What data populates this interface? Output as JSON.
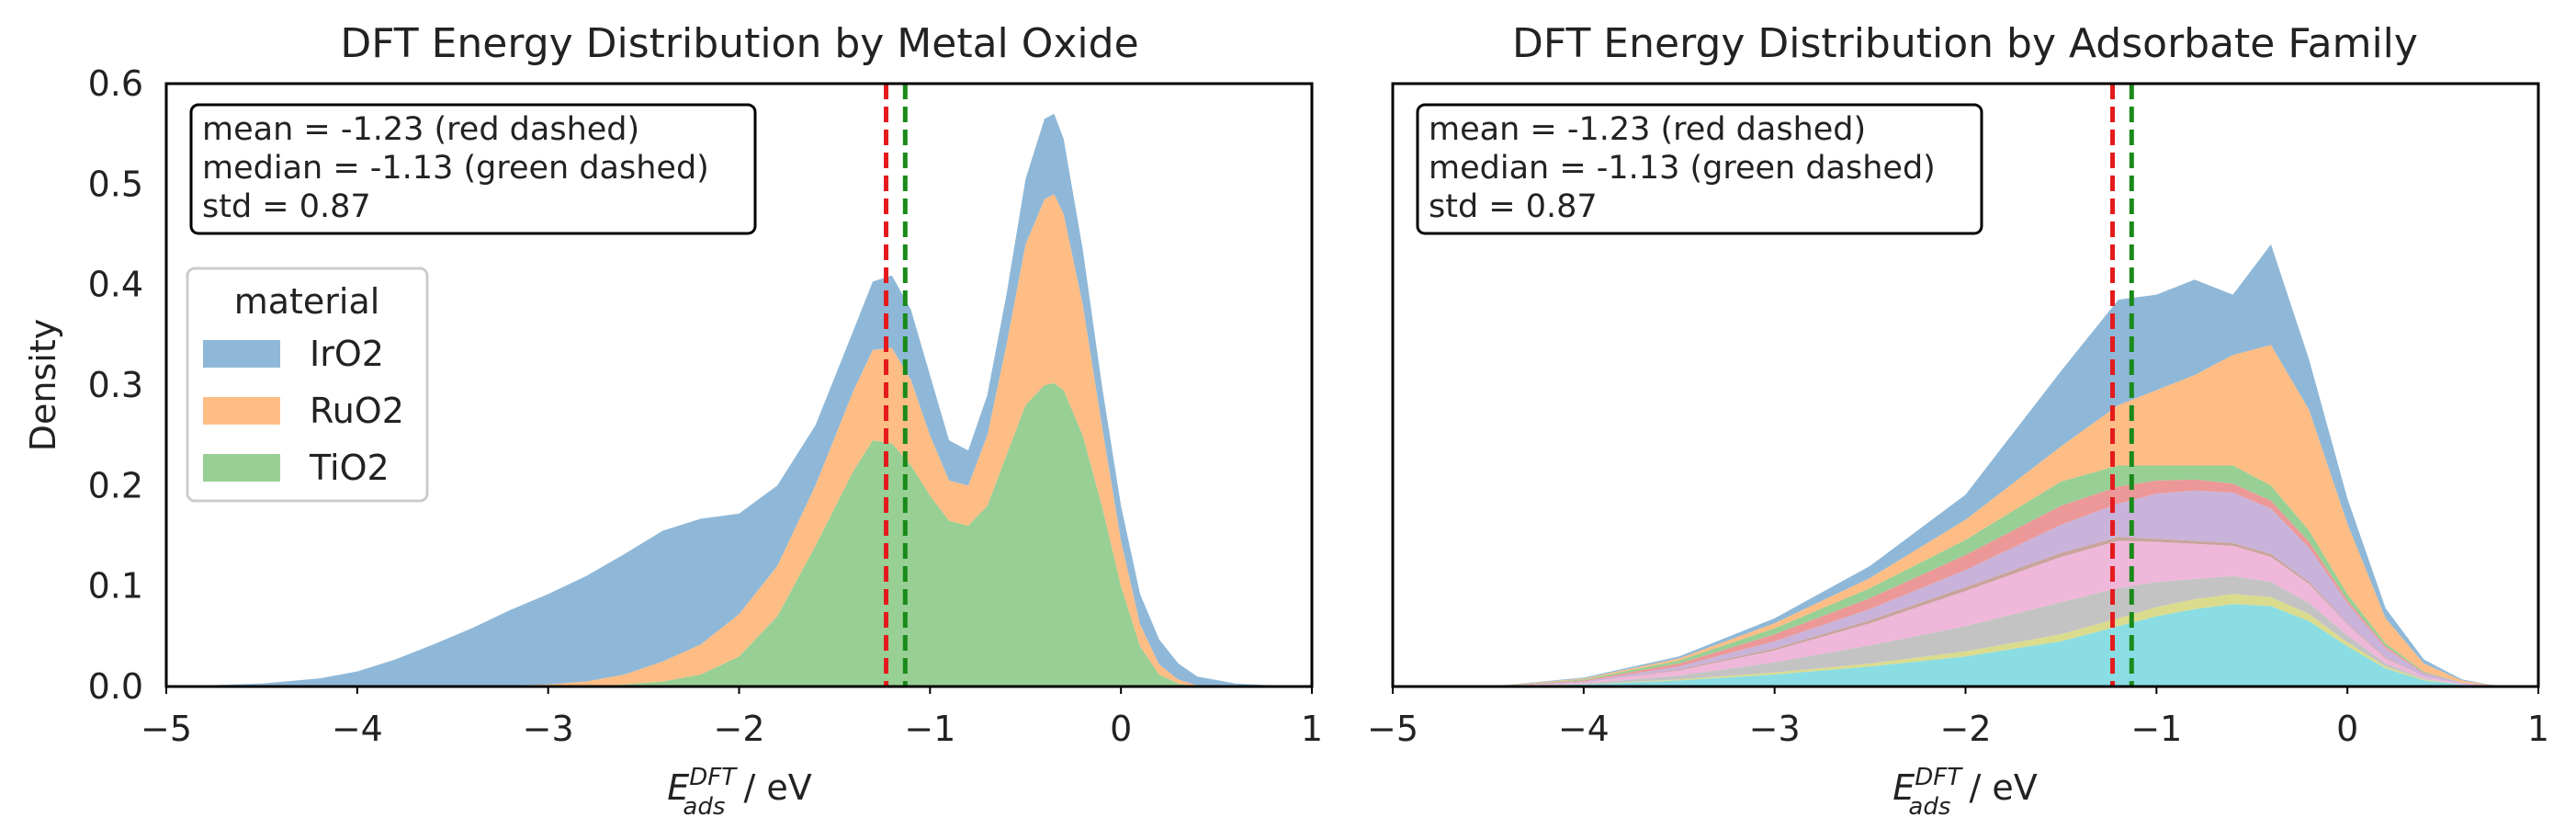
{
  "chart_data": [
    {
      "type": "area",
      "stacked": true,
      "title": "DFT Energy Distribution by Metal Oxide",
      "xlabel": "E",
      "xlabel_sup": "DFT",
      "xlabel_sub": "ads",
      "xlabel_unit": " / eV",
      "ylabel": "Density",
      "xlim": [
        -5,
        1
      ],
      "ylim": [
        0,
        0.6
      ],
      "xticks": [
        -5,
        -4,
        -3,
        -2,
        -1,
        0,
        1
      ],
      "xtick_labels": [
        "−5",
        "−4",
        "−3",
        "−2",
        "−1",
        "0",
        "1"
      ],
      "yticks": [
        0.0,
        0.1,
        0.2,
        0.3,
        0.4,
        0.5,
        0.6
      ],
      "ytick_labels": [
        "0.0",
        "0.1",
        "0.2",
        "0.3",
        "0.4",
        "0.5",
        "0.6"
      ],
      "grid": false,
      "legend_title": "material",
      "legend_position": "upper-left",
      "annotation_lines": [
        "mean = -1.23 (red dashed)",
        "median = -1.13 (green dashed)",
        "std = 0.87"
      ],
      "vlines": [
        {
          "x": -1.23,
          "color": "#e41a1c",
          "style": "dashed"
        },
        {
          "x": -1.13,
          "color": "#1a8a1a",
          "style": "dashed"
        }
      ],
      "x": [
        -4.8,
        -4.5,
        -4.2,
        -4.0,
        -3.8,
        -3.6,
        -3.4,
        -3.2,
        -3.0,
        -2.8,
        -2.6,
        -2.4,
        -2.2,
        -2.0,
        -1.8,
        -1.6,
        -1.4,
        -1.3,
        -1.2,
        -1.1,
        -1.0,
        -0.9,
        -0.8,
        -0.7,
        -0.6,
        -0.5,
        -0.4,
        -0.35,
        -0.3,
        -0.2,
        -0.1,
        0.0,
        0.1,
        0.2,
        0.3,
        0.4,
        0.6,
        0.8,
        1.0
      ],
      "series": [
        {
          "name": "TiO2",
          "color": "#98cf95",
          "values": [
            0,
            0,
            0,
            0,
            0,
            0,
            0,
            0,
            0,
            0,
            0.002,
            0.005,
            0.012,
            0.03,
            0.07,
            0.14,
            0.215,
            0.245,
            0.242,
            0.22,
            0.19,
            0.165,
            0.16,
            0.18,
            0.23,
            0.28,
            0.3,
            0.302,
            0.295,
            0.25,
            0.18,
            0.1,
            0.04,
            0.012,
            0.003,
            0,
            0,
            0,
            0
          ]
        },
        {
          "name": "RuO2",
          "color": "#fdbd85",
          "values": [
            0,
            0,
            0,
            0,
            0,
            0,
            0,
            0.001,
            0.002,
            0.005,
            0.01,
            0.02,
            0.03,
            0.042,
            0.05,
            0.06,
            0.08,
            0.09,
            0.095,
            0.085,
            0.06,
            0.04,
            0.04,
            0.07,
            0.11,
            0.16,
            0.185,
            0.188,
            0.175,
            0.13,
            0.08,
            0.045,
            0.022,
            0.01,
            0.004,
            0.001,
            0,
            0,
            0
          ]
        },
        {
          "name": "IrO2",
          "color": "#8fb8d8",
          "values": [
            0.001,
            0.003,
            0.008,
            0.015,
            0.027,
            0.042,
            0.058,
            0.075,
            0.09,
            0.105,
            0.12,
            0.13,
            0.125,
            0.1,
            0.08,
            0.06,
            0.06,
            0.068,
            0.072,
            0.07,
            0.06,
            0.04,
            0.035,
            0.04,
            0.05,
            0.065,
            0.08,
            0.08,
            0.075,
            0.055,
            0.04,
            0.035,
            0.03,
            0.025,
            0.016,
            0.009,
            0.003,
            0.001,
            0
          ]
        }
      ]
    },
    {
      "type": "area",
      "stacked": true,
      "title": "DFT Energy Distribution by Adsorbate Family",
      "xlabel": "E",
      "xlabel_sup": "DFT",
      "xlabel_sub": "ads",
      "xlabel_unit": " / eV",
      "ylabel": "",
      "xlim": [
        -5,
        1
      ],
      "ylim": [
        0,
        0.6
      ],
      "xticks": [
        -5,
        -4,
        -3,
        -2,
        -1,
        0,
        1
      ],
      "xtick_labels": [
        "−5",
        "−4",
        "−3",
        "−2",
        "−1",
        "0",
        "1"
      ],
      "yticks": [],
      "ytick_labels": [],
      "grid": false,
      "annotation_lines": [
        "mean = -1.23 (red dashed)",
        "median = -1.13 (green dashed)",
        "std = 0.87"
      ],
      "vlines": [
        {
          "x": -1.23,
          "color": "#e41a1c",
          "style": "dashed"
        },
        {
          "x": -1.13,
          "color": "#1a8a1a",
          "style": "dashed"
        }
      ],
      "x": [
        -4.5,
        -4.0,
        -3.5,
        -3.0,
        -2.5,
        -2.0,
        -1.5,
        -1.2,
        -1.0,
        -0.8,
        -0.6,
        -0.4,
        -0.2,
        0.0,
        0.2,
        0.4,
        0.6,
        0.8,
        1.0
      ],
      "series": [
        {
          "color": "#8adde3",
          "values": [
            0,
            0.002,
            0.006,
            0.012,
            0.02,
            0.03,
            0.045,
            0.06,
            0.07,
            0.077,
            0.082,
            0.08,
            0.065,
            0.04,
            0.018,
            0.006,
            0.002,
            0,
            0
          ]
        },
        {
          "color": "#dbdb8d",
          "values": [
            0,
            0,
            0.001,
            0.002,
            0.003,
            0.005,
            0.007,
            0.008,
            0.009,
            0.01,
            0.01,
            0.009,
            0.007,
            0.004,
            0.002,
            0.001,
            0,
            0,
            0
          ]
        },
        {
          "color": "#c3c3c3",
          "values": [
            0,
            0.001,
            0.004,
            0.01,
            0.018,
            0.025,
            0.032,
            0.03,
            0.025,
            0.02,
            0.018,
            0.015,
            0.011,
            0.007,
            0.003,
            0.001,
            0,
            0,
            0
          ]
        },
        {
          "color": "#efb7d9",
          "values": [
            0,
            0.001,
            0.005,
            0.012,
            0.022,
            0.035,
            0.045,
            0.047,
            0.04,
            0.035,
            0.03,
            0.025,
            0.019,
            0.011,
            0.005,
            0.002,
            0.001,
            0,
            0
          ]
        },
        {
          "color": "#c8a49c",
          "values": [
            0,
            0,
            0.001,
            0.002,
            0.003,
            0.004,
            0.004,
            0.004,
            0.003,
            0.003,
            0.003,
            0.003,
            0.002,
            0.001,
            0.001,
            0,
            0,
            0,
            0
          ]
        },
        {
          "color": "#c9b3da",
          "values": [
            0,
            0.001,
            0.003,
            0.007,
            0.011,
            0.017,
            0.028,
            0.033,
            0.045,
            0.05,
            0.05,
            0.045,
            0.034,
            0.02,
            0.009,
            0.003,
            0.001,
            0,
            0
          ]
        },
        {
          "color": "#ec9898",
          "values": [
            0,
            0.001,
            0.003,
            0.007,
            0.011,
            0.015,
            0.019,
            0.017,
            0.013,
            0.011,
            0.009,
            0.008,
            0.006,
            0.003,
            0.002,
            0.001,
            0,
            0,
            0
          ]
        },
        {
          "color": "#98cf95",
          "values": [
            0,
            0.001,
            0.003,
            0.006,
            0.01,
            0.015,
            0.024,
            0.021,
            0.015,
            0.014,
            0.018,
            0.015,
            0.011,
            0.006,
            0.003,
            0.001,
            0,
            0,
            0
          ]
        },
        {
          "color": "#fdbd85",
          "values": [
            0,
            0.001,
            0.002,
            0.005,
            0.01,
            0.02,
            0.035,
            0.06,
            0.075,
            0.09,
            0.11,
            0.14,
            0.12,
            0.07,
            0.025,
            0.008,
            0.002,
            0,
            0
          ]
        },
        {
          "color": "#8fb8d8",
          "values": [
            0,
            0.001,
            0.002,
            0.005,
            0.012,
            0.025,
            0.075,
            0.105,
            0.095,
            0.095,
            0.06,
            0.1,
            0.05,
            0.025,
            0.01,
            0.004,
            0.001,
            0,
            0
          ]
        }
      ]
    }
  ]
}
